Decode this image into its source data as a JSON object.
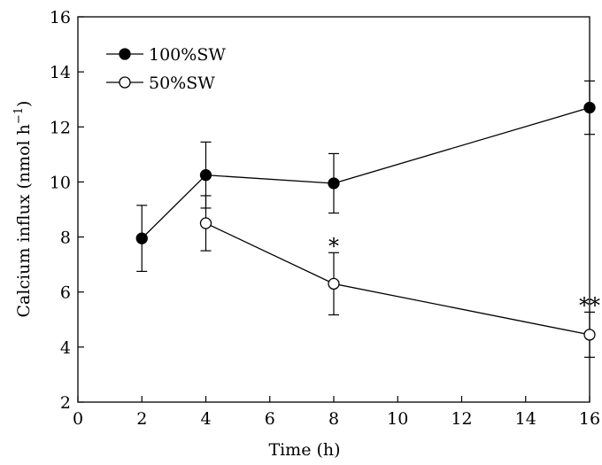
{
  "chart_data": {
    "type": "line",
    "xlabel": "Time (h)",
    "ylabel_main": "Calcium influx (nmol h",
    "ylabel_sup": "−1",
    "ylabel_close": ")",
    "xlim": [
      0,
      16
    ],
    "ylim": [
      2,
      16
    ],
    "xticks": [
      0,
      2,
      4,
      6,
      8,
      10,
      12,
      14,
      16
    ],
    "yticks": [
      2,
      4,
      6,
      8,
      10,
      12,
      14,
      16
    ],
    "grid": false,
    "legend_position": "top-left",
    "series": [
      {
        "name": "100%SW",
        "marker": "filled-circle",
        "color": "#000000",
        "points": [
          {
            "x": 2,
            "y": 7.95,
            "err": 1.2
          },
          {
            "x": 4,
            "y": 10.25,
            "err": 1.2
          },
          {
            "x": 8,
            "y": 9.95,
            "err": 1.08
          },
          {
            "x": 16,
            "y": 12.7,
            "err": 0.97
          }
        ]
      },
      {
        "name": "50%SW",
        "marker": "open-circle",
        "color": "#000000",
        "points": [
          {
            "x": 4,
            "y": 8.5,
            "err": 1.0
          },
          {
            "x": 8,
            "y": 6.3,
            "err": 1.13
          },
          {
            "x": 16,
            "y": 4.45,
            "err": 0.82
          }
        ]
      }
    ],
    "annotations": [
      {
        "text": "*",
        "x": 8,
        "y": 7.6
      },
      {
        "text": "**",
        "x": 16,
        "y": 5.45
      }
    ]
  }
}
